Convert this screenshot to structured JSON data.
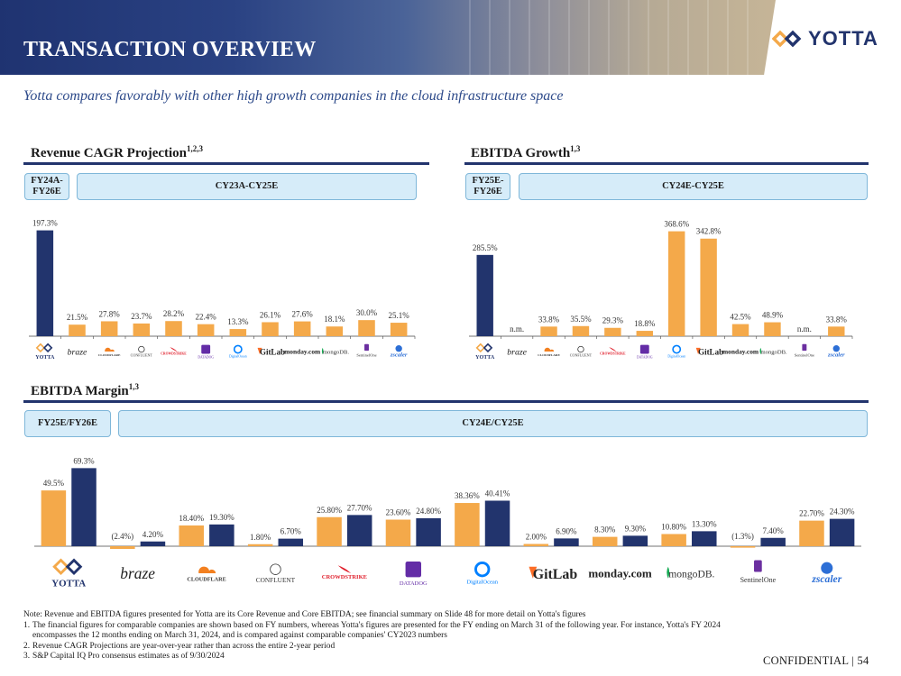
{
  "header": {
    "title": "TRANSACTION OVERVIEW",
    "logo_text": "YOTTA",
    "subtitle": "Yotta compares favorably with other high growth companies in the cloud infrastructure space"
  },
  "colors": {
    "navy": "#22346d",
    "orange": "#f4a94a",
    "pill_fill": "#d6ecf9",
    "pill_border": "#7fb7d9"
  },
  "companies": [
    "YOTTA",
    "braze",
    "CLOUDFLARE",
    "CONFLUENT",
    "CROWDSTRIKE",
    "DATADOG",
    "DigitalOcean",
    "GitLab",
    "monday.com",
    "mongoDB.",
    "SentinelOne",
    "zscaler"
  ],
  "sections": {
    "revenue": {
      "title": "Revenue CAGR Projection",
      "sup": "1,2,3",
      "pill_left": "FY24A-\nFY26E",
      "pill_right": "CY23A-CY25E"
    },
    "ebitda_growth": {
      "title": "EBITDA Growth",
      "sup": "1,3",
      "pill_left": "FY25E-\nFY26E",
      "pill_right": "CY24E-CY25E"
    },
    "ebitda_margin": {
      "title": "EBITDA Margin",
      "sup": "1,3",
      "pill_left": "FY25E/FY26E",
      "pill_right": "CY24E/CY25E"
    }
  },
  "chart_data": [
    {
      "type": "bar",
      "title": "Revenue CAGR Projection",
      "categories": [
        "YOTTA",
        "braze",
        "CLOUDFLARE",
        "CONFLUENT",
        "CROWDSTRIKE",
        "DATADOG",
        "DigitalOcean",
        "GitLab",
        "monday.com",
        "mongoDB.",
        "SentinelOne",
        "zscaler"
      ],
      "values": [
        197.3,
        21.5,
        27.8,
        23.7,
        28.2,
        22.4,
        13.3,
        26.1,
        27.6,
        18.1,
        30.0,
        25.1
      ],
      "labels": [
        "197.3%",
        "21.5%",
        "27.8%",
        "23.7%",
        "28.2%",
        "22.4%",
        "13.3%",
        "26.1%",
        "27.6%",
        "18.1%",
        "30.0%",
        "25.1%"
      ],
      "ylim": [
        0,
        205
      ]
    },
    {
      "type": "bar",
      "title": "EBITDA Growth",
      "categories": [
        "YOTTA",
        "braze",
        "CLOUDFLARE",
        "CONFLUENT",
        "CROWDSTRIKE",
        "DATADOG",
        "DigitalOcean",
        "GitLab",
        "monday.com",
        "mongoDB.",
        "SentinelOne",
        "zscaler"
      ],
      "values": [
        285.5,
        null,
        33.8,
        35.5,
        29.3,
        18.8,
        368.6,
        342.8,
        42.5,
        48.9,
        null,
        33.8
      ],
      "labels": [
        "285.5%",
        "n.m.",
        "33.8%",
        "35.5%",
        "29.3%",
        "18.8%",
        "368.6%",
        "342.8%",
        "42.5%",
        "48.9%",
        "n.m.",
        "33.8%"
      ],
      "ylim": [
        0,
        380
      ]
    },
    {
      "type": "bar",
      "title": "EBITDA Margin",
      "categories": [
        "YOTTA",
        "braze",
        "CLOUDFLARE",
        "CONFLUENT",
        "CROWDSTRIKE",
        "DATADOG",
        "DigitalOcean",
        "GitLab",
        "monday.com",
        "mongoDB.",
        "SentinelOne",
        "zscaler"
      ],
      "series": [
        {
          "name": "CY24E",
          "values": [
            49.5,
            -2.4,
            18.4,
            1.8,
            25.8,
            23.6,
            38.36,
            2.0,
            8.3,
            10.8,
            -1.3,
            22.7
          ],
          "labels": [
            "49.5%",
            "(2.4%)",
            "18.40%",
            "1.80%",
            "25.80%",
            "23.60%",
            "38.36%",
            "2.00%",
            "8.30%",
            "10.80%",
            "(1.3%)",
            "22.70%"
          ]
        },
        {
          "name": "CY25E",
          "values": [
            69.3,
            4.2,
            19.3,
            6.7,
            27.7,
            24.8,
            40.41,
            6.9,
            9.3,
            13.3,
            7.4,
            24.3
          ],
          "labels": [
            "69.3%",
            "4.20%",
            "19.30%",
            "6.70%",
            "27.70%",
            "24.80%",
            "40.41%",
            "6.90%",
            "9.30%",
            "13.30%",
            "7.40%",
            "24.30%"
          ]
        }
      ],
      "ylim": [
        -3,
        72
      ]
    }
  ],
  "footer": {
    "note": "Note: Revenue and EBITDA figures presented for Yotta are its Core Revenue and Core EBITDA; see financial summary on Slide 48 for more detail on Yotta's figures",
    "footnotes": [
      "The financial figures for comparable companies are shown based on FY numbers, whereas Yotta's figures are presented for the FY ending on March 31 of the following year. For instance, Yotta's FY 2024 encompasses the 12 months ending on March 31, 2024, and is compared against comparable companies' CY2023 numbers",
      "Revenue CAGR Projections are year-over-year rather than across the entire 2-year period",
      "S&P Capital IQ Pro consensus estimates as of 9/30/2024"
    ],
    "footnote_numbers": [
      "1.",
      "2.",
      "3."
    ],
    "confidential": "CONFIDENTIAL | 54"
  }
}
